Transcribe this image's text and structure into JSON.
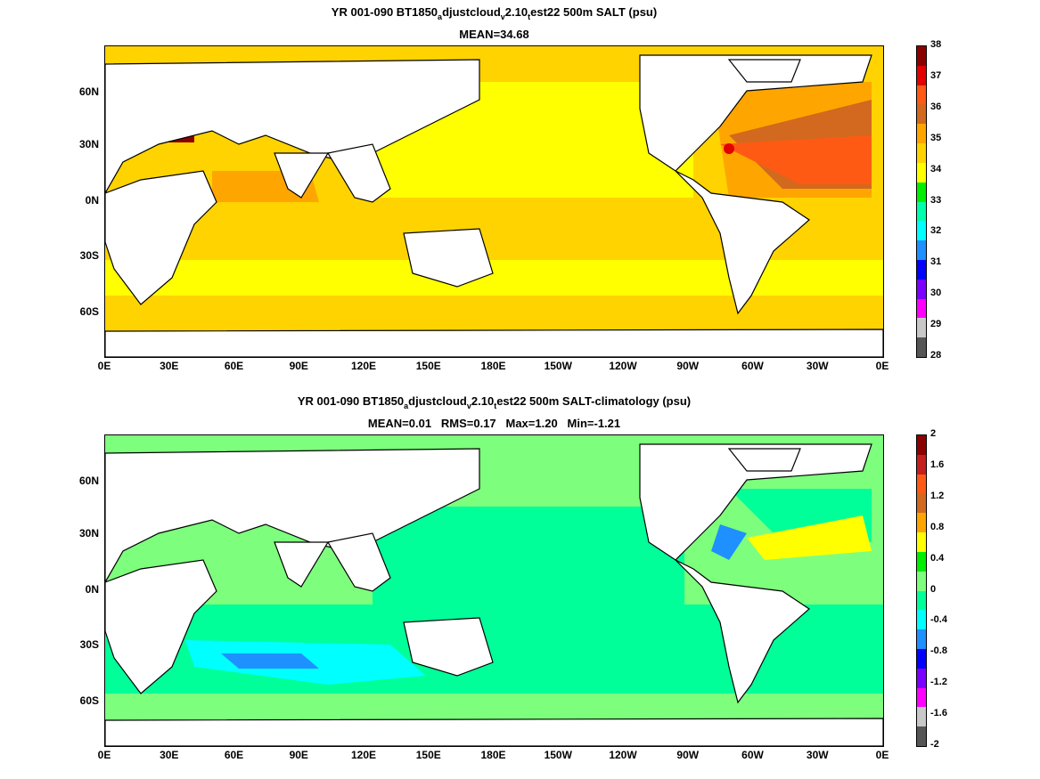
{
  "chart_data": [
    {
      "type": "heatmap",
      "title_parts": [
        "YR 001-090 BT1850",
        "a",
        "djustcloud",
        "v",
        "2.10",
        "t",
        "est22 500m SALT (psu)"
      ],
      "subtitle": "MEAN=34.68",
      "mean": 34.68,
      "units": "psu",
      "x_ticks": [
        "0E",
        "30E",
        "60E",
        "90E",
        "120E",
        "150E",
        "180E",
        "150W",
        "120W",
        "90W",
        "60W",
        "30W",
        "0E"
      ],
      "y_ticks": [
        "60N",
        "30N",
        "0N",
        "30S",
        "60S"
      ],
      "xlim": [
        0,
        360
      ],
      "ylim": [
        -80,
        90
      ],
      "colorbar": {
        "levels": [
          "38",
          "37",
          "36",
          "35",
          "34",
          "33",
          "32",
          "31",
          "30",
          "29",
          "28"
        ],
        "colors": [
          "#8b0000",
          "#e30000",
          "#ff5a14",
          "#d2691e",
          "#ffa500",
          "#ffd300",
          "#ffff00",
          "#00ee00",
          "#00ffaa",
          "#00ffff",
          "#1e90ff",
          "#0000ff",
          "#7b00ff",
          "#ff00ff",
          "#c8c8c8",
          "#555555"
        ]
      }
    },
    {
      "type": "heatmap",
      "title_parts": [
        "YR 001-090 BT1850",
        "a",
        "djustcloud",
        "v",
        "2.10",
        "t",
        "est22 500m SALT-climatology (psu)"
      ],
      "subtitle": "MEAN=0.01   RMS=0.17   Max=1.20   Min=-1.21",
      "mean": 0.01,
      "rms": 0.17,
      "max": 1.2,
      "min": -1.21,
      "units": "psu",
      "x_ticks": [
        "0E",
        "30E",
        "60E",
        "90E",
        "120E",
        "150E",
        "180E",
        "150W",
        "120W",
        "90W",
        "60W",
        "30W",
        "0E"
      ],
      "y_ticks": [
        "60N",
        "30N",
        "0N",
        "30S",
        "60S"
      ],
      "xlim": [
        0,
        360
      ],
      "ylim": [
        -80,
        90
      ],
      "colorbar": {
        "levels": [
          "2",
          "1.6",
          "1.2",
          "0.8",
          "0.4",
          "0",
          "-0.4",
          "-0.8",
          "-1.2",
          "-1.6",
          "-2"
        ],
        "colors": [
          "#8b0000",
          "#c41e1e",
          "#ff5a14",
          "#d2691e",
          "#ffa500",
          "#ffff00",
          "#00ee00",
          "#7dff7d",
          "#00ff99",
          "#00ffff",
          "#1e90ff",
          "#0000ff",
          "#7b00ff",
          "#ff00ff",
          "#c8c8c8",
          "#555555"
        ]
      }
    }
  ]
}
